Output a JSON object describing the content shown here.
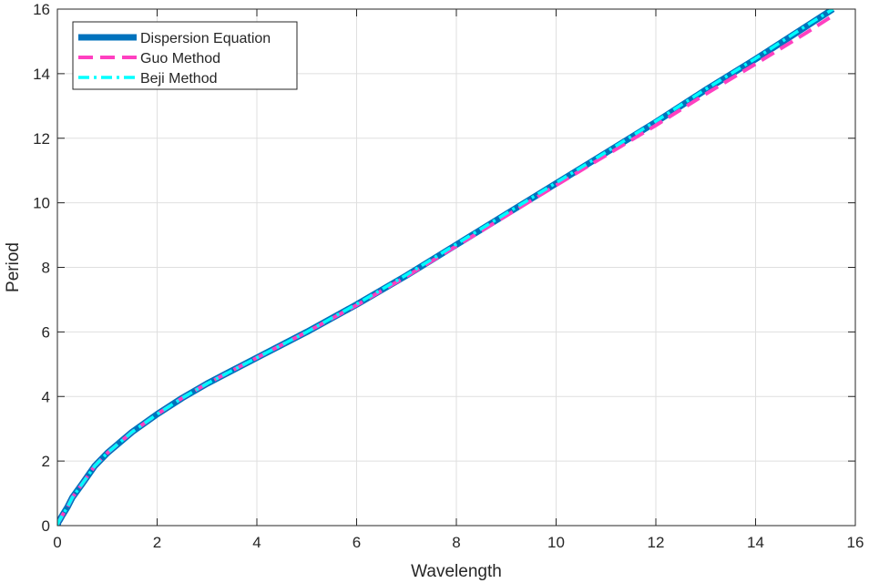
{
  "chart_data": {
    "type": "line",
    "title": "",
    "xlabel": "Wavelength",
    "ylabel": "Period",
    "xlim": [
      0,
      16
    ],
    "ylim": [
      0,
      16
    ],
    "xticks": [
      0,
      2,
      4,
      6,
      8,
      10,
      12,
      14,
      16
    ],
    "yticks": [
      0,
      2,
      4,
      6,
      8,
      10,
      12,
      14,
      16
    ],
    "grid": true,
    "legend_position": "top-left",
    "series": [
      {
        "name": "Dispersion Equation",
        "color": "#0072BD",
        "line_style": "solid-thick",
        "x": [
          0.02,
          0.05,
          0.1,
          0.2,
          0.3,
          0.5,
          0.75,
          1,
          1.5,
          2,
          2.5,
          3,
          3.5,
          4,
          5,
          6,
          7,
          8,
          9,
          10,
          11,
          12,
          13,
          14,
          15,
          15.55
        ],
        "y": [
          0.11,
          0.18,
          0.32,
          0.57,
          0.87,
          1.3,
          1.85,
          2.25,
          2.9,
          3.45,
          3.95,
          4.4,
          4.8,
          5.2,
          6.0,
          6.85,
          7.75,
          8.7,
          9.65,
          10.6,
          11.55,
          12.5,
          13.5,
          14.45,
          15.45,
          16.0
        ]
      },
      {
        "name": "Guo Method",
        "color": "#FF40C0",
        "line_style": "dashed",
        "x": [
          0.02,
          0.05,
          0.1,
          0.2,
          0.3,
          0.5,
          0.75,
          1,
          1.5,
          2,
          2.5,
          3,
          3.5,
          4,
          5,
          6,
          7,
          8,
          9,
          10,
          11,
          12,
          13,
          14,
          15,
          15.55
        ],
        "y": [
          0.11,
          0.18,
          0.32,
          0.57,
          0.87,
          1.3,
          1.85,
          2.25,
          2.9,
          3.45,
          3.95,
          4.4,
          4.8,
          5.2,
          6.0,
          6.83,
          7.72,
          8.66,
          9.6,
          10.54,
          11.47,
          12.4,
          13.37,
          14.3,
          15.25,
          15.8
        ]
      },
      {
        "name": "Beji Method",
        "color": "#00FFFF",
        "line_style": "dash-dot",
        "x": [
          0.02,
          0.05,
          0.1,
          0.2,
          0.3,
          0.5,
          0.75,
          1,
          1.5,
          2,
          2.5,
          3,
          3.5,
          4,
          5,
          6,
          7,
          8,
          9,
          10,
          11,
          12,
          13,
          14,
          15,
          15.55
        ],
        "y": [
          0.11,
          0.18,
          0.32,
          0.57,
          0.87,
          1.3,
          1.85,
          2.25,
          2.9,
          3.45,
          3.95,
          4.4,
          4.8,
          5.2,
          6.0,
          6.86,
          7.77,
          8.72,
          9.67,
          10.62,
          11.57,
          12.53,
          13.52,
          14.47,
          15.47,
          16.0
        ]
      }
    ]
  }
}
